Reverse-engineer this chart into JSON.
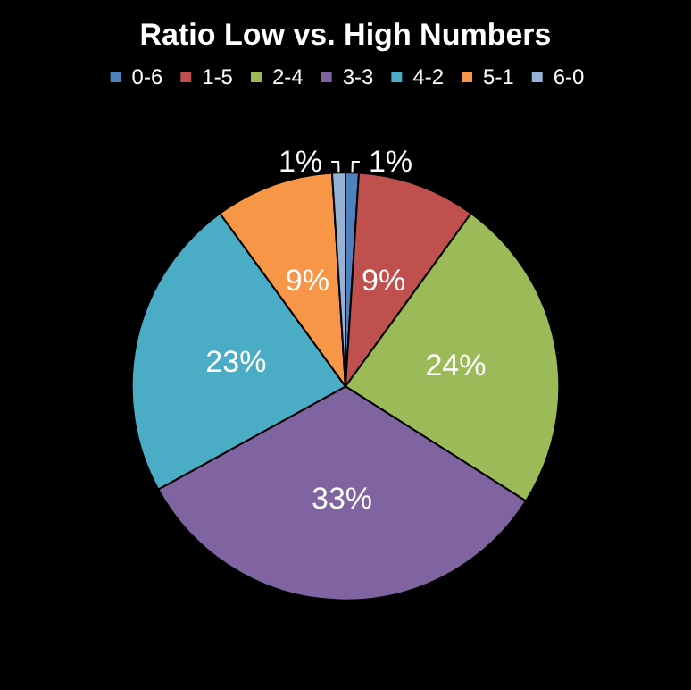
{
  "chart_data": {
    "type": "pie",
    "title": "Ratio Low vs. High Numbers",
    "categories": [
      "0-6",
      "1-5",
      "2-4",
      "3-3",
      "4-2",
      "5-1",
      "6-0"
    ],
    "values": [
      1,
      9,
      24,
      33,
      23,
      9,
      1
    ],
    "colors": [
      "#4f81bd",
      "#c0504d",
      "#9bbb59",
      "#8064a2",
      "#4bacc6",
      "#f79646",
      "#95b3d7"
    ],
    "value_labels": [
      "1%",
      "9%",
      "24%",
      "33%",
      "23%",
      "9%",
      "1%"
    ],
    "legend": "top"
  }
}
